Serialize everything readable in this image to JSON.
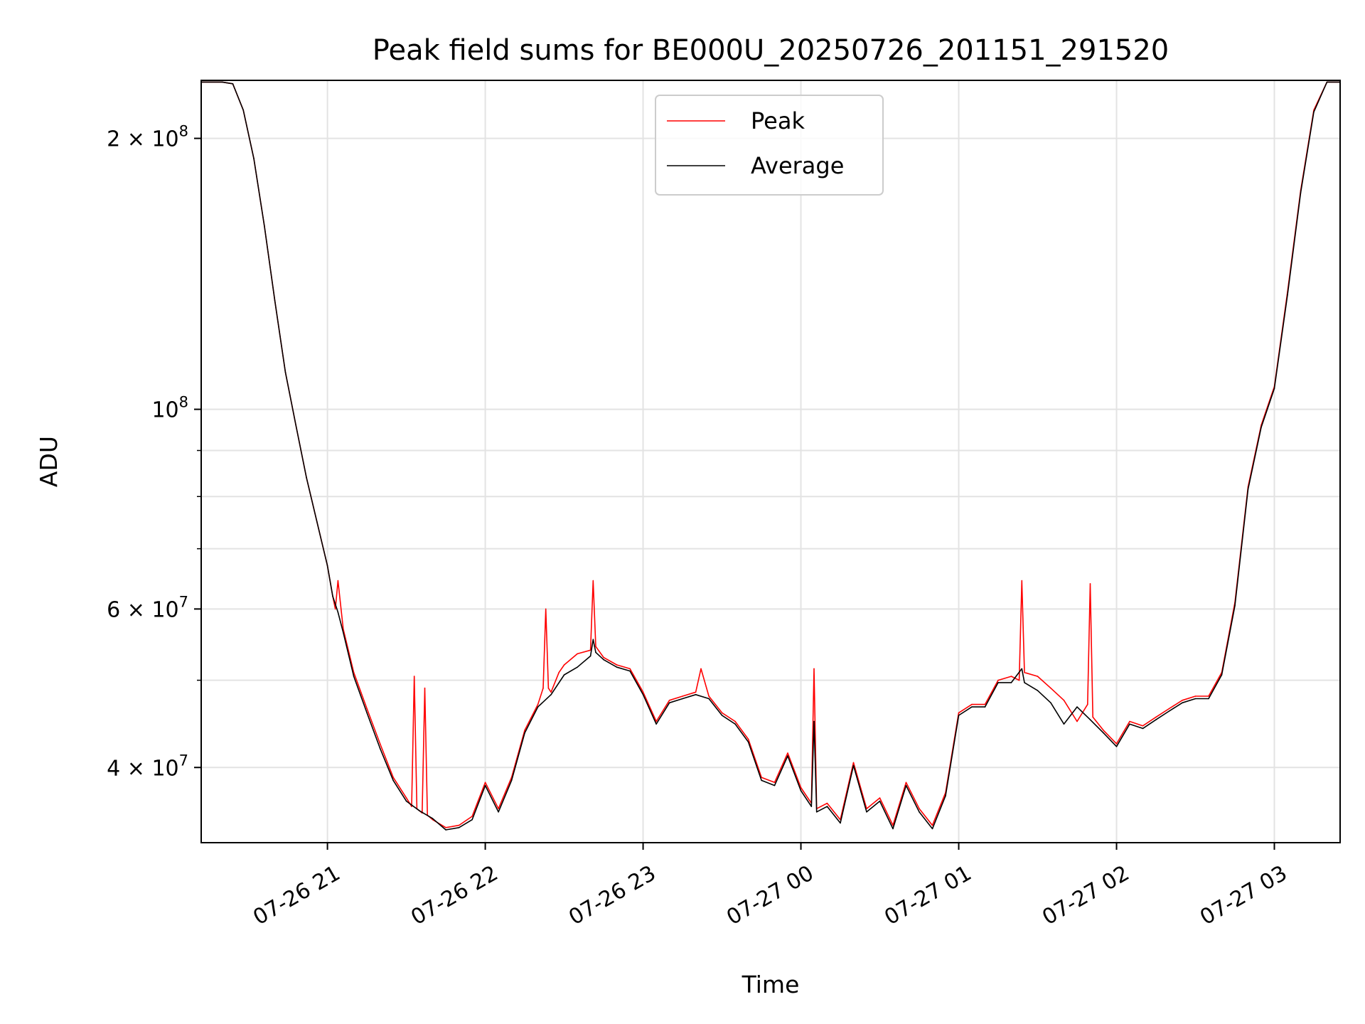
{
  "chart_data": {
    "type": "line",
    "title": "Peak field sums for BE000U_20250726_201151_291520",
    "xlabel": "Time",
    "ylabel": "ADU",
    "yscale": "log",
    "ylim": [
      33000000,
      232000000
    ],
    "xlim": [
      "2025-07-26 20:12",
      "2025-07-27 03:25"
    ],
    "grid": true,
    "legend_position": "top-center",
    "x_ticks": [
      {
        "label": "07-26 21",
        "time": "2025-07-26 21:00"
      },
      {
        "label": "07-26 22",
        "time": "2025-07-26 22:00"
      },
      {
        "label": "07-26 23",
        "time": "2025-07-26 23:00"
      },
      {
        "label": "07-27 00",
        "time": "2025-07-27 00:00"
      },
      {
        "label": "07-27 01",
        "time": "2025-07-27 01:00"
      },
      {
        "label": "07-27 02",
        "time": "2025-07-27 02:00"
      },
      {
        "label": "07-27 03",
        "time": "2025-07-27 03:00"
      }
    ],
    "y_ticks": [
      {
        "mantissa": "4",
        "exponent": "7",
        "value": 40000000
      },
      {
        "mantissa": "6",
        "exponent": "7",
        "value": 60000000
      },
      {
        "mantissa": "",
        "exponent": "8",
        "value": 100000000
      },
      {
        "mantissa": "2",
        "exponent": "8",
        "value": 200000000
      }
    ],
    "y_minor_ticks": [
      50000000,
      70000000,
      80000000,
      90000000
    ],
    "series": [
      {
        "name": "Peak",
        "color": "#ff0000",
        "x": [
          "2025-07-26 20:12",
          "2025-07-26 20:20",
          "2025-07-26 20:24",
          "2025-07-26 20:28",
          "2025-07-26 20:32",
          "2025-07-26 20:36",
          "2025-07-26 20:40",
          "2025-07-26 20:44",
          "2025-07-26 20:48",
          "2025-07-26 20:52",
          "2025-07-26 20:56",
          "2025-07-26 21:00",
          "2025-07-26 21:02",
          "2025-07-26 21:03",
          "2025-07-26 21:04",
          "2025-07-26 21:06",
          "2025-07-26 21:10",
          "2025-07-26 21:15",
          "2025-07-26 21:20",
          "2025-07-26 21:25",
          "2025-07-26 21:30",
          "2025-07-26 21:32",
          "2025-07-26 21:33",
          "2025-07-26 21:34",
          "2025-07-26 21:36",
          "2025-07-26 21:37",
          "2025-07-26 21:38",
          "2025-07-26 21:40",
          "2025-07-26 21:45",
          "2025-07-26 21:50",
          "2025-07-26 21:55",
          "2025-07-26 22:00",
          "2025-07-26 22:05",
          "2025-07-26 22:10",
          "2025-07-26 22:15",
          "2025-07-26 22:20",
          "2025-07-26 22:22",
          "2025-07-26 22:23",
          "2025-07-26 22:24",
          "2025-07-26 22:25",
          "2025-07-26 22:28",
          "2025-07-26 22:30",
          "2025-07-26 22:35",
          "2025-07-26 22:40",
          "2025-07-26 22:41",
          "2025-07-26 22:42",
          "2025-07-26 22:45",
          "2025-07-26 22:50",
          "2025-07-26 22:55",
          "2025-07-26 23:00",
          "2025-07-26 23:05",
          "2025-07-26 23:10",
          "2025-07-26 23:15",
          "2025-07-26 23:20",
          "2025-07-26 23:22",
          "2025-07-26 23:25",
          "2025-07-26 23:30",
          "2025-07-26 23:35",
          "2025-07-26 23:40",
          "2025-07-26 23:45",
          "2025-07-26 23:50",
          "2025-07-26 23:55",
          "2025-07-27 00:00",
          "2025-07-27 00:04",
          "2025-07-27 00:05",
          "2025-07-27 00:06",
          "2025-07-27 00:10",
          "2025-07-27 00:15",
          "2025-07-27 00:20",
          "2025-07-27 00:25",
          "2025-07-27 00:30",
          "2025-07-27 00:35",
          "2025-07-27 00:40",
          "2025-07-27 00:45",
          "2025-07-27 00:50",
          "2025-07-27 00:55",
          "2025-07-27 01:00",
          "2025-07-27 01:05",
          "2025-07-27 01:10",
          "2025-07-27 01:15",
          "2025-07-27 01:20",
          "2025-07-27 01:23",
          "2025-07-27 01:24",
          "2025-07-27 01:25",
          "2025-07-27 01:30",
          "2025-07-27 01:35",
          "2025-07-27 01:40",
          "2025-07-27 01:45",
          "2025-07-27 01:49",
          "2025-07-27 01:50",
          "2025-07-27 01:51",
          "2025-07-27 01:55",
          "2025-07-27 02:00",
          "2025-07-27 02:05",
          "2025-07-27 02:10",
          "2025-07-27 02:15",
          "2025-07-27 02:20",
          "2025-07-27 02:25",
          "2025-07-27 02:30",
          "2025-07-27 02:35",
          "2025-07-27 02:40",
          "2025-07-27 02:45",
          "2025-07-27 02:50",
          "2025-07-27 02:55",
          "2025-07-27 03:00",
          "2025-07-27 03:05",
          "2025-07-27 03:10",
          "2025-07-27 03:15",
          "2025-07-27 03:20",
          "2025-07-27 03:25"
        ],
        "values": [
          231000000,
          231000000,
          230000000,
          215000000,
          190000000,
          160000000,
          132000000,
          110000000,
          96000000,
          84000000,
          75000000,
          67000000,
          62000000,
          60000000,
          64500000,
          57000000,
          51000000,
          46500000,
          42500000,
          39000000,
          37000000,
          36200000,
          50500000,
          36000000,
          35600000,
          49000000,
          35400000,
          35000000,
          34300000,
          34500000,
          35300000,
          38500000,
          36000000,
          39000000,
          44000000,
          47000000,
          49000000,
          60000000,
          49000000,
          48500000,
          51000000,
          52000000,
          53500000,
          54000000,
          64500000,
          54500000,
          53000000,
          52000000,
          51500000,
          48500000,
          45000000,
          47500000,
          48000000,
          48500000,
          51500000,
          48000000,
          46000000,
          45000000,
          43000000,
          39000000,
          38500000,
          41500000,
          38000000,
          36500000,
          51500000,
          36000000,
          36500000,
          35000000,
          40500000,
          36000000,
          37000000,
          34500000,
          38500000,
          36000000,
          34500000,
          37500000,
          46000000,
          47000000,
          47000000,
          50000000,
          50500000,
          50000000,
          64500000,
          51000000,
          50500000,
          49000000,
          47500000,
          45000000,
          47000000,
          64000000,
          45500000,
          44000000,
          42500000,
          45000000,
          44500000,
          45500000,
          46500000,
          47500000,
          48000000,
          48000000,
          51000000,
          61000000,
          82000000,
          96000000,
          106000000,
          135000000,
          175000000,
          215000000,
          231000000,
          231000000
        ]
      },
      {
        "name": "Average",
        "color": "#000000",
        "x": [
          "2025-07-26 20:12",
          "2025-07-26 20:20",
          "2025-07-26 20:24",
          "2025-07-26 20:28",
          "2025-07-26 20:32",
          "2025-07-26 20:36",
          "2025-07-26 20:40",
          "2025-07-26 20:44",
          "2025-07-26 20:48",
          "2025-07-26 20:52",
          "2025-07-26 20:56",
          "2025-07-26 21:00",
          "2025-07-26 21:02",
          "2025-07-26 21:04",
          "2025-07-26 21:06",
          "2025-07-26 21:10",
          "2025-07-26 21:15",
          "2025-07-26 21:20",
          "2025-07-26 21:25",
          "2025-07-26 21:30",
          "2025-07-26 21:35",
          "2025-07-26 21:40",
          "2025-07-26 21:45",
          "2025-07-26 21:50",
          "2025-07-26 21:55",
          "2025-07-26 22:00",
          "2025-07-26 22:05",
          "2025-07-26 22:10",
          "2025-07-26 22:15",
          "2025-07-26 22:20",
          "2025-07-26 22:25",
          "2025-07-26 22:30",
          "2025-07-26 22:35",
          "2025-07-26 22:40",
          "2025-07-26 22:41",
          "2025-07-26 22:42",
          "2025-07-26 22:45",
          "2025-07-26 22:50",
          "2025-07-26 22:55",
          "2025-07-26 23:00",
          "2025-07-26 23:05",
          "2025-07-26 23:10",
          "2025-07-26 23:15",
          "2025-07-26 23:20",
          "2025-07-26 23:25",
          "2025-07-26 23:30",
          "2025-07-26 23:35",
          "2025-07-26 23:40",
          "2025-07-26 23:45",
          "2025-07-26 23:50",
          "2025-07-26 23:55",
          "2025-07-27 00:00",
          "2025-07-27 00:04",
          "2025-07-27 00:05",
          "2025-07-27 00:06",
          "2025-07-27 00:10",
          "2025-07-27 00:15",
          "2025-07-27 00:20",
          "2025-07-27 00:25",
          "2025-07-27 00:30",
          "2025-07-27 00:35",
          "2025-07-27 00:40",
          "2025-07-27 00:45",
          "2025-07-27 00:50",
          "2025-07-27 00:55",
          "2025-07-27 01:00",
          "2025-07-27 01:05",
          "2025-07-27 01:10",
          "2025-07-27 01:15",
          "2025-07-27 01:20",
          "2025-07-27 01:24",
          "2025-07-27 01:25",
          "2025-07-27 01:30",
          "2025-07-27 01:35",
          "2025-07-27 01:40",
          "2025-07-27 01:45",
          "2025-07-27 01:50",
          "2025-07-27 01:55",
          "2025-07-27 02:00",
          "2025-07-27 02:05",
          "2025-07-27 02:10",
          "2025-07-27 02:15",
          "2025-07-27 02:20",
          "2025-07-27 02:25",
          "2025-07-27 02:30",
          "2025-07-27 02:35",
          "2025-07-27 02:40",
          "2025-07-27 02:45",
          "2025-07-27 02:50",
          "2025-07-27 02:55",
          "2025-07-27 03:00",
          "2025-07-27 03:05",
          "2025-07-27 03:10",
          "2025-07-27 03:15",
          "2025-07-27 03:20",
          "2025-07-27 03:25"
        ],
        "values": [
          231000000,
          231000000,
          230000000,
          215000000,
          190000000,
          160000000,
          132000000,
          110000000,
          96000000,
          84000000,
          75000000,
          67000000,
          62000000,
          59500000,
          56500000,
          50500000,
          46000000,
          42000000,
          38700000,
          36700000,
          35800000,
          35100000,
          34100000,
          34300000,
          35000000,
          38200000,
          35700000,
          38700000,
          43700000,
          46700000,
          48200000,
          50700000,
          51700000,
          53200000,
          55500000,
          53700000,
          52700000,
          51700000,
          51200000,
          48200000,
          44700000,
          47200000,
          47700000,
          48200000,
          47700000,
          45700000,
          44700000,
          42700000,
          38700000,
          38200000,
          41200000,
          37700000,
          36200000,
          45000000,
          35700000,
          36200000,
          34700000,
          40200000,
          35700000,
          36700000,
          34200000,
          38200000,
          35700000,
          34200000,
          37200000,
          45700000,
          46700000,
          46700000,
          49700000,
          49700000,
          51500000,
          49700000,
          48700000,
          47200000,
          44700000,
          46700000,
          45200000,
          43700000,
          42200000,
          44700000,
          44200000,
          45200000,
          46200000,
          47200000,
          47700000,
          47700000,
          50700000,
          60500000,
          81500000,
          95500000,
          105500000,
          134000000,
          174000000,
          214000000,
          231000000,
          231000000
        ]
      }
    ]
  }
}
